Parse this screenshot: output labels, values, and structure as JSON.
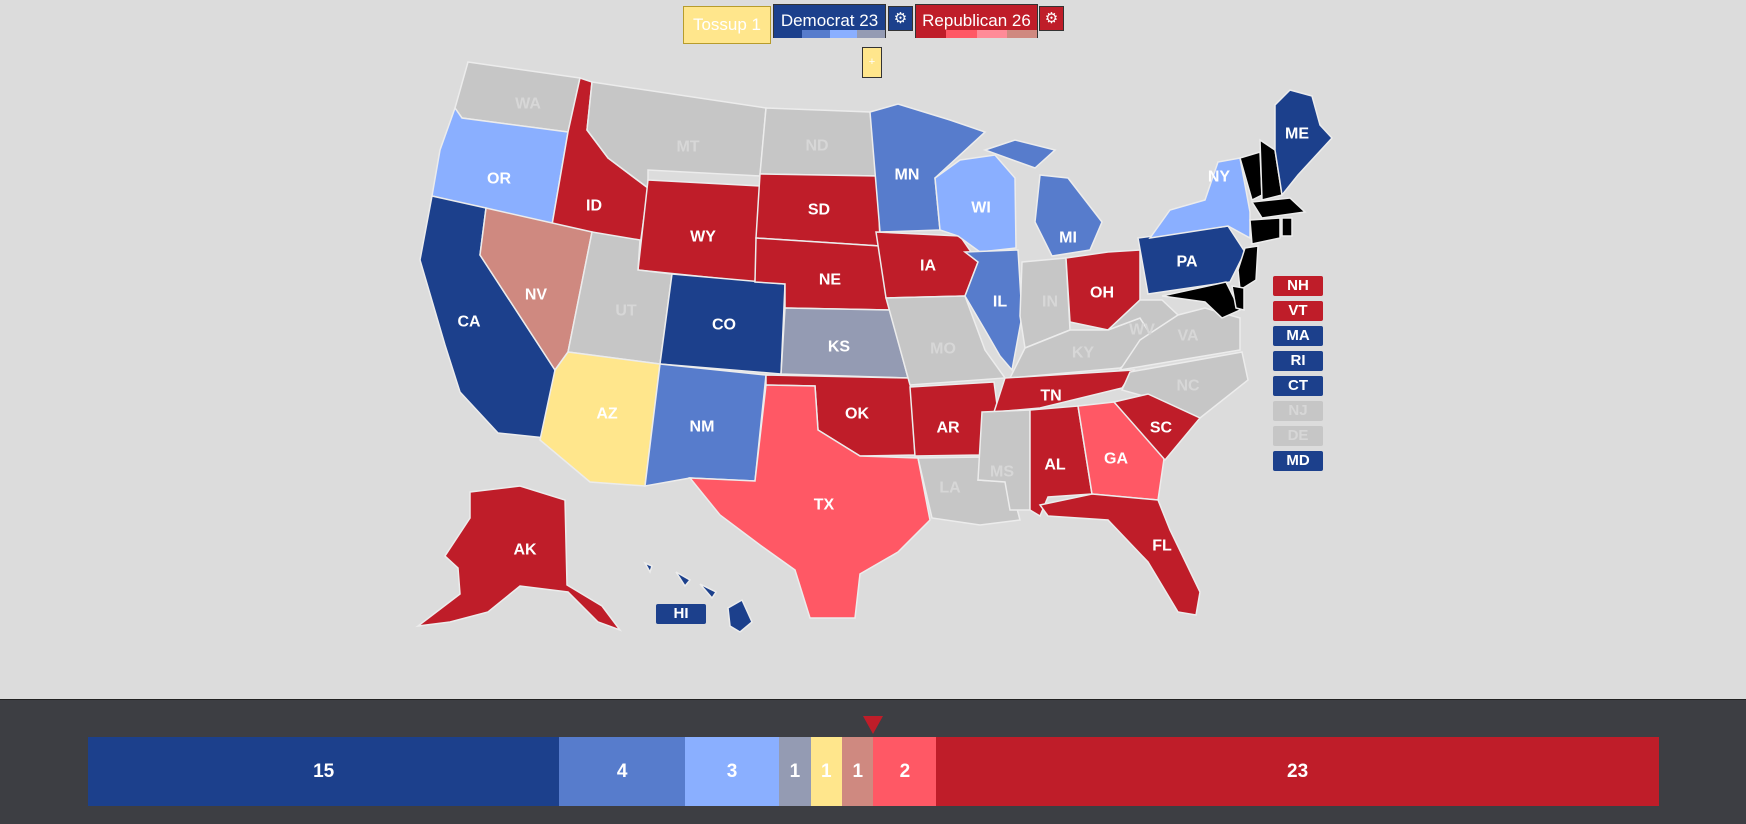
{
  "header": {
    "tossup_label": "Tossup 1",
    "dem_label": "Democrat 23",
    "rep_label": "Republican 26",
    "gear_glyph": "⚙",
    "tossup_small_glyph": "+"
  },
  "colors": {
    "safe_d": "#1c408c",
    "likely_d": "#577ccc",
    "lean_d": "#8aafff",
    "tilt_d": "#949bb3",
    "tossup": "#ffe68c",
    "tilt_r": "#cf8980",
    "lean_r": "#ff5865",
    "likely_r": "#ff8b98",
    "safe_r": "#bf1d29",
    "none": "#c6c6c6"
  },
  "map": {
    "states": [
      {
        "id": "WA",
        "label": "WA",
        "rating": "none"
      },
      {
        "id": "OR",
        "label": "OR",
        "rating": "lean_d"
      },
      {
        "id": "CA",
        "label": "CA",
        "rating": "safe_d"
      },
      {
        "id": "ID",
        "label": "ID",
        "rating": "safe_r"
      },
      {
        "id": "NV",
        "label": "NV",
        "rating": "tilt_r"
      },
      {
        "id": "MT",
        "label": "MT",
        "rating": "none"
      },
      {
        "id": "WY",
        "label": "WY",
        "rating": "safe_r"
      },
      {
        "id": "UT",
        "label": "UT",
        "rating": "none"
      },
      {
        "id": "AZ",
        "label": "AZ",
        "rating": "tossup"
      },
      {
        "id": "CO",
        "label": "CO",
        "rating": "safe_d"
      },
      {
        "id": "NM",
        "label": "NM",
        "rating": "likely_d"
      },
      {
        "id": "ND",
        "label": "ND",
        "rating": "none"
      },
      {
        "id": "SD",
        "label": "SD",
        "rating": "safe_r"
      },
      {
        "id": "NE",
        "label": "NE",
        "rating": "safe_r"
      },
      {
        "id": "KS",
        "label": "KS",
        "rating": "tilt_d"
      },
      {
        "id": "OK",
        "label": "OK",
        "rating": "safe_r"
      },
      {
        "id": "TX",
        "label": "TX",
        "rating": "lean_r"
      },
      {
        "id": "MN",
        "label": "MN",
        "rating": "likely_d"
      },
      {
        "id": "IA",
        "label": "IA",
        "rating": "safe_r"
      },
      {
        "id": "MO",
        "label": "MO",
        "rating": "none"
      },
      {
        "id": "AR",
        "label": "AR",
        "rating": "safe_r"
      },
      {
        "id": "LA",
        "label": "LA",
        "rating": "none"
      },
      {
        "id": "WI",
        "label": "WI",
        "rating": "lean_d"
      },
      {
        "id": "IL",
        "label": "IL",
        "rating": "likely_d"
      },
      {
        "id": "MI",
        "label": "MI",
        "rating": "likely_d"
      },
      {
        "id": "IN",
        "label": "IN",
        "rating": "none"
      },
      {
        "id": "OH",
        "label": "OH",
        "rating": "safe_r"
      },
      {
        "id": "KY",
        "label": "KY",
        "rating": "none"
      },
      {
        "id": "TN",
        "label": "TN",
        "rating": "safe_r"
      },
      {
        "id": "MS",
        "label": "MS",
        "rating": "none"
      },
      {
        "id": "AL",
        "label": "AL",
        "rating": "safe_r"
      },
      {
        "id": "GA",
        "label": "GA",
        "rating": "lean_r"
      },
      {
        "id": "FL",
        "label": "FL",
        "rating": "safe_r"
      },
      {
        "id": "SC",
        "label": "SC",
        "rating": "safe_r"
      },
      {
        "id": "NC",
        "label": "NC",
        "rating": "none"
      },
      {
        "id": "VA",
        "label": "VA",
        "rating": "none"
      },
      {
        "id": "WV",
        "label": "WV",
        "rating": "none"
      },
      {
        "id": "PA",
        "label": "PA",
        "rating": "safe_d"
      },
      {
        "id": "NY",
        "label": "NY",
        "rating": "lean_d"
      },
      {
        "id": "ME",
        "label": "ME",
        "rating": "safe_d"
      },
      {
        "id": "AK",
        "label": "AK",
        "rating": "safe_r"
      },
      {
        "id": "HI",
        "label": "HI",
        "rating": "safe_d"
      }
    ],
    "side_boxes": [
      {
        "label": "NH",
        "rating": "safe_r"
      },
      {
        "label": "VT",
        "rating": "safe_r"
      },
      {
        "label": "MA",
        "rating": "safe_d"
      },
      {
        "label": "RI",
        "rating": "safe_d"
      },
      {
        "label": "CT",
        "rating": "safe_d"
      },
      {
        "label": "NJ",
        "rating": "none"
      },
      {
        "label": "DE",
        "rating": "none"
      },
      {
        "label": "MD",
        "rating": "safe_d"
      }
    ],
    "hi_label": "HI"
  },
  "summary_bar": [
    {
      "label": "15",
      "value": 15,
      "rating": "safe_d"
    },
    {
      "label": "4",
      "value": 4,
      "rating": "likely_d"
    },
    {
      "label": "3",
      "value": 3,
      "rating": "lean_d"
    },
    {
      "label": "1",
      "value": 1,
      "rating": "tilt_d"
    },
    {
      "label": "1",
      "value": 1,
      "rating": "tossup"
    },
    {
      "label": "1",
      "value": 1,
      "rating": "tilt_r"
    },
    {
      "label": "2",
      "value": 2,
      "rating": "lean_r"
    },
    {
      "label": "23",
      "value": 23,
      "rating": "safe_r"
    }
  ]
}
